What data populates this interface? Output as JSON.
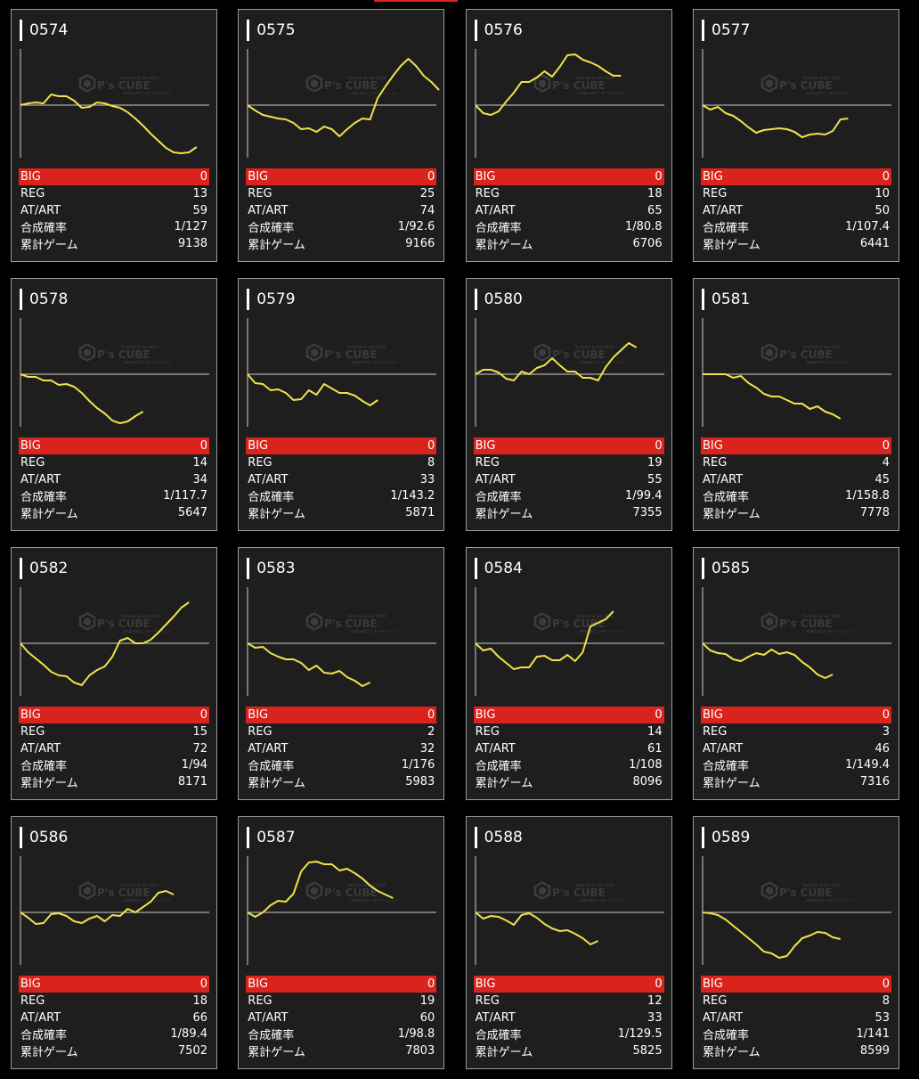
{
  "stat_labels": {
    "big": "BIG",
    "reg": "REG",
    "at": "AT/ART",
    "prob": "合成確率",
    "games": "累計ゲーム"
  },
  "watermark": {
    "logo": "P's CUBE",
    "top_line": "Yoshida & Sai 2018",
    "bottom_line": "aidanotエンターテイメント"
  },
  "colors": {
    "accent_red": "#d9231c",
    "line": "#f0e24a",
    "card_bg": "#1e1e1e",
    "baseline": "#cfcfcf"
  },
  "machines": [
    {
      "id": "0574",
      "big": "0",
      "reg": "13",
      "at": "59",
      "prob": "1/127",
      "games": "9138",
      "series": [
        0,
        2,
        3,
        2,
        12,
        10,
        10,
        5,
        -3,
        -2,
        3,
        2,
        -1,
        -3,
        -8,
        -15,
        -23,
        -32,
        -40,
        -48,
        -53,
        -54,
        -53,
        -47
      ]
    },
    {
      "id": "0575",
      "big": "0",
      "reg": "25",
      "at": "74",
      "prob": "1/92.6",
      "games": "9166",
      "series": [
        0,
        -6,
        -11,
        -13,
        -15,
        -16,
        -20,
        -27,
        -26,
        -30,
        -24,
        -27,
        -35,
        -27,
        -20,
        -15,
        -16,
        8,
        21,
        33,
        44,
        52,
        44,
        33,
        26,
        17
      ]
    },
    {
      "id": "0576",
      "big": "0",
      "reg": "18",
      "at": "65",
      "prob": "1/80.8",
      "games": "6706",
      "series": [
        0,
        -9,
        -11,
        -7,
        4,
        14,
        26,
        26,
        31,
        38,
        32,
        43,
        56,
        57,
        51,
        48,
        44,
        38,
        33,
        33
      ]
    },
    {
      "id": "0577",
      "big": "0",
      "reg": "10",
      "at": "50",
      "prob": "1/107.4",
      "games": "6441",
      "series": [
        0,
        -5,
        -2,
        -9,
        -12,
        -18,
        -25,
        -31,
        -28,
        -27,
        -26,
        -27,
        -30,
        -36,
        -33,
        -32,
        -33,
        -29,
        -16,
        -15
      ]
    },
    {
      "id": "0578",
      "big": "0",
      "reg": "14",
      "at": "34",
      "prob": "1/117.7",
      "games": "5647",
      "series": [
        0,
        -3,
        -3,
        -7,
        -7,
        -12,
        -11,
        -14,
        -21,
        -30,
        -38,
        -44,
        -52,
        -55,
        -53,
        -47,
        -42
      ]
    },
    {
      "id": "0579",
      "big": "0",
      "reg": "8",
      "at": "33",
      "prob": "1/143.2",
      "games": "5871",
      "series": [
        0,
        -10,
        -11,
        -18,
        -17,
        -21,
        -29,
        -28,
        -18,
        -23,
        -11,
        -16,
        -21,
        -21,
        -24,
        -30,
        -35,
        -29
      ]
    },
    {
      "id": "0580",
      "big": "0",
      "reg": "19",
      "at": "55",
      "prob": "1/99.4",
      "games": "7355",
      "series": [
        0,
        5,
        5,
        2,
        -5,
        -7,
        3,
        0,
        7,
        10,
        18,
        10,
        3,
        3,
        -4,
        -4,
        -7,
        8,
        19,
        27,
        35,
        30
      ]
    },
    {
      "id": "0581",
      "big": "0",
      "reg": "4",
      "at": "45",
      "prob": "1/158.8",
      "games": "7778",
      "series": [
        0,
        0,
        0,
        0,
        -4,
        -2,
        -10,
        -15,
        -22,
        -25,
        -25,
        -29,
        -33,
        -33,
        -39,
        -36,
        -42,
        -45,
        -50
      ]
    },
    {
      "id": "0582",
      "big": "0",
      "reg": "15",
      "at": "72",
      "prob": "1/94",
      "games": "8171",
      "series": [
        0,
        -10,
        -17,
        -24,
        -32,
        -36,
        -37,
        -44,
        -47,
        -36,
        -30,
        -26,
        -15,
        3,
        6,
        0,
        0,
        4,
        12,
        21,
        30,
        40,
        46
      ]
    },
    {
      "id": "0583",
      "big": "0",
      "reg": "2",
      "at": "32",
      "prob": "1/176",
      "games": "5983",
      "series": [
        0,
        -5,
        -4,
        -11,
        -15,
        -18,
        -18,
        -22,
        -30,
        -25,
        -33,
        -34,
        -31,
        -38,
        -42,
        -48,
        -44
      ]
    },
    {
      "id": "0584",
      "big": "0",
      "reg": "14",
      "at": "61",
      "prob": "1/108",
      "games": "8096",
      "series": [
        0,
        -8,
        -6,
        -15,
        -22,
        -29,
        -27,
        -27,
        -15,
        -14,
        -19,
        -19,
        -13,
        -20,
        -10,
        19,
        23,
        27,
        36
      ]
    },
    {
      "id": "0585",
      "big": "0",
      "reg": "3",
      "at": "46",
      "prob": "1/149.4",
      "games": "7316",
      "series": [
        0,
        -8,
        -11,
        -12,
        -18,
        -20,
        -15,
        -11,
        -13,
        -7,
        -12,
        -10,
        -13,
        -21,
        -27,
        -35,
        -39,
        -35
      ]
    },
    {
      "id": "0586",
      "big": "0",
      "reg": "18",
      "at": "66",
      "prob": "1/89.4",
      "games": "7502",
      "series": [
        0,
        -6,
        -13,
        -12,
        -2,
        -1,
        -4,
        -10,
        -12,
        -7,
        -4,
        -10,
        -3,
        -4,
        4,
        0,
        6,
        12,
        22,
        24,
        20
      ]
    },
    {
      "id": "0587",
      "big": "0",
      "reg": "19",
      "at": "60",
      "prob": "1/98.8",
      "games": "7803",
      "series": [
        0,
        -5,
        0,
        8,
        13,
        12,
        21,
        46,
        56,
        57,
        54,
        54,
        47,
        49,
        44,
        38,
        30,
        24,
        20,
        16
      ]
    },
    {
      "id": "0588",
      "big": "0",
      "reg": "12",
      "at": "33",
      "prob": "1/129.5",
      "games": "5825",
      "series": [
        0,
        -7,
        -4,
        -5,
        -9,
        -14,
        -3,
        -1,
        -6,
        -13,
        -18,
        -21,
        -20,
        -24,
        -29,
        -36,
        -32
      ]
    },
    {
      "id": "0589",
      "big": "0",
      "reg": "8",
      "at": "53",
      "prob": "1/141",
      "games": "8599",
      "series": [
        0,
        -1,
        -3,
        -8,
        -15,
        -22,
        -29,
        -36,
        -44,
        -46,
        -51,
        -49,
        -38,
        -29,
        -26,
        -22,
        -23,
        -28,
        -30
      ]
    }
  ]
}
